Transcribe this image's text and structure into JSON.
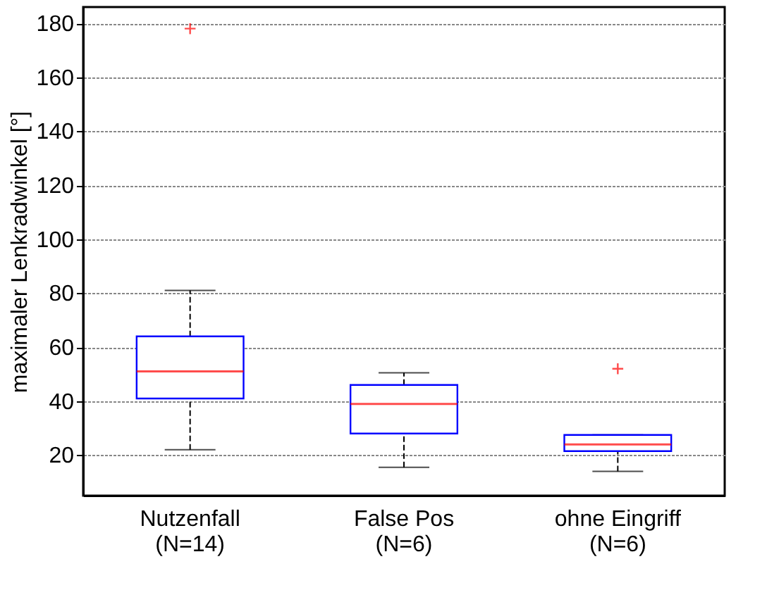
{
  "chart_data": {
    "type": "box",
    "ylabel": "maximaler Lenkradwinkel [°]",
    "categories": [
      "Nutzenfall\n(N=14)",
      "False Pos\n(N=6)",
      "ohne Eingriff\n(N=6)"
    ],
    "boxes": [
      {
        "low": 22,
        "q1": 41,
        "median": 51,
        "q3": 64,
        "high": 81,
        "outliers": [
          178
        ]
      },
      {
        "low": 15.5,
        "q1": 28,
        "median": 39,
        "q3": 46,
        "high": 50.5
      },
      {
        "low": 14,
        "q1": 21.5,
        "median": 24,
        "q3": 27.5,
        "high": 27.5,
        "outliers": [
          52
        ]
      }
    ],
    "ylim": [
      5,
      186
    ],
    "yticks": [
      20,
      40,
      60,
      80,
      100,
      120,
      140,
      160,
      180
    ],
    "grid": "y"
  }
}
